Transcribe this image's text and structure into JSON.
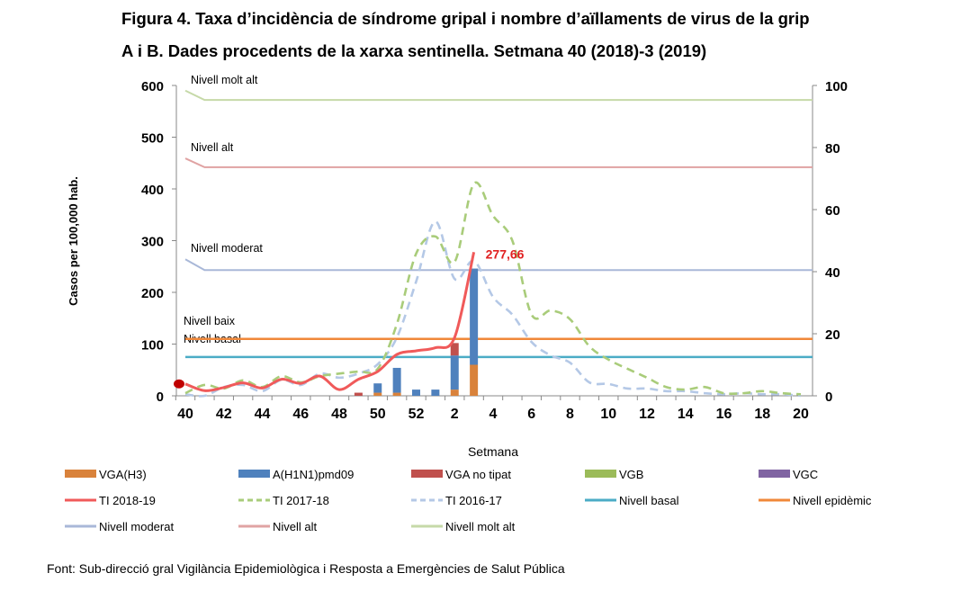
{
  "chart_data": {
    "type": "bar+line",
    "title_line1": "Figura 4. Taxa d’incidència de síndrome gripal i nombre d’aïllaments de virus de la grip",
    "title_line2": "A i B. Dades procedents de la xarxa sentinella.  Setmana 40 (2018)-3 (2019)",
    "xlabel": "Setmana",
    "ylabel": "Casos per 100,000 hab.",
    "ylim": [
      0,
      600
    ],
    "y2lim": [
      0,
      100
    ],
    "yticks": [
      "0",
      "100",
      "200",
      "300",
      "400",
      "500",
      "600"
    ],
    "y2ticks": [
      "0",
      "20",
      "40",
      "60",
      "80",
      "100"
    ],
    "weeks": [
      "40",
      "41",
      "42",
      "43",
      "44",
      "45",
      "46",
      "47",
      "48",
      "49",
      "50",
      "51",
      "52",
      "1",
      "2",
      "3",
      "4",
      "5",
      "6",
      "7",
      "8",
      "9",
      "10",
      "11",
      "12",
      "13",
      "14",
      "15",
      "16",
      "17",
      "18",
      "19",
      "20"
    ],
    "xtick_labels": [
      "40",
      "42",
      "44",
      "46",
      "48",
      "50",
      "52",
      "2",
      "4",
      "6",
      "8",
      "10",
      "12",
      "14",
      "16",
      "18",
      "20"
    ],
    "bar_series": [
      {
        "name": "VGA(H3)",
        "color": "#d9823b",
        "values": [
          0,
          0,
          0,
          0,
          0,
          0,
          0,
          0,
          0,
          0,
          1,
          1,
          0,
          0,
          2,
          10
        ]
      },
      {
        "name": "A(H1N1)pmd09",
        "color": "#4f81bd",
        "values": [
          0,
          0,
          0,
          0,
          0,
          0,
          0,
          0,
          0,
          0,
          3,
          8,
          2,
          2,
          11,
          31
        ]
      },
      {
        "name": "VGA no tipat",
        "color": "#c0504d",
        "values": [
          0,
          0,
          0,
          0,
          0,
          0,
          0,
          0,
          0,
          1,
          0,
          0,
          0,
          0,
          4,
          0
        ]
      },
      {
        "name": "VGB",
        "color": "#9bbb59",
        "values": [
          0,
          0,
          0,
          0,
          0,
          0,
          0,
          0,
          0,
          0,
          0,
          0,
          0,
          0,
          0,
          0
        ]
      },
      {
        "name": "VGC",
        "color": "#8064a2",
        "values": [
          0,
          0,
          0,
          0,
          0,
          0,
          0,
          0,
          0,
          0,
          0,
          0,
          0,
          0,
          0,
          0
        ]
      }
    ],
    "line_series": [
      {
        "name": "TI 2018-19",
        "color": "#f05a5a",
        "style": "solid",
        "values": [
          23,
          10,
          16,
          25,
          15,
          32,
          24,
          38,
          12,
          32,
          47,
          80,
          87,
          93,
          113,
          277.66
        ]
      },
      {
        "name": "TI 2017-18",
        "color": "#a9cc7a",
        "style": "dashed",
        "values": [
          5,
          21,
          14,
          30,
          17,
          38,
          26,
          38,
          43,
          47,
          52,
          139,
          275,
          308,
          259,
          410,
          348,
          300,
          157,
          165,
          148,
          96,
          70,
          52,
          35,
          17,
          12,
          17,
          5,
          5,
          9,
          5,
          3
        ]
      },
      {
        "name": "TI 2016-17",
        "color": "#b4c8e6",
        "style": "dashed",
        "values": [
          3,
          0,
          17,
          21,
          9,
          31,
          21,
          43,
          35,
          43,
          61,
          113,
          221,
          337,
          226,
          261,
          191,
          157,
          104,
          78,
          64,
          26,
          23,
          14,
          14,
          9,
          9,
          5,
          3,
          5,
          3,
          3,
          0
        ]
      }
    ],
    "thresholds": [
      {
        "name": "Nivell basal",
        "legend": "Nivell basal",
        "color": "#4bacc6",
        "start": 75,
        "value": 75
      },
      {
        "name": "Nivell baix",
        "legend": "Nivell epidèmic",
        "color": "#f0883a",
        "start": 110,
        "value": 110
      },
      {
        "name": "Nivell moderat",
        "legend": "Nivell moderat",
        "color": "#a9b8d8",
        "start": 264,
        "value": 243
      },
      {
        "name": "Nivell alt",
        "legend": "Nivell alt",
        "color": "#e0a3a3",
        "start": 459,
        "value": 442
      },
      {
        "name": "Nivell molt alt",
        "legend": "Nivell molt alt",
        "color": "#c6d9a8",
        "start": 590,
        "value": 572
      }
    ],
    "annotation": "277,66",
    "legend": [
      "VGA(H3)",
      "A(H1N1)pmd09",
      "VGA no tipat",
      "VGB",
      "VGC",
      "TI 2018-19",
      "TI 2017-18",
      "TI 2016-17",
      "Nivell basal",
      "Nivell epidèmic",
      "Nivell moderat",
      "Nivell alt",
      "Nivell molt alt"
    ],
    "legend_placement": "bottom",
    "source": "Font:  Sub-direcció gral Vigilància  Epidemiològica  i Resposta a Emergències de Salut Pública"
  }
}
